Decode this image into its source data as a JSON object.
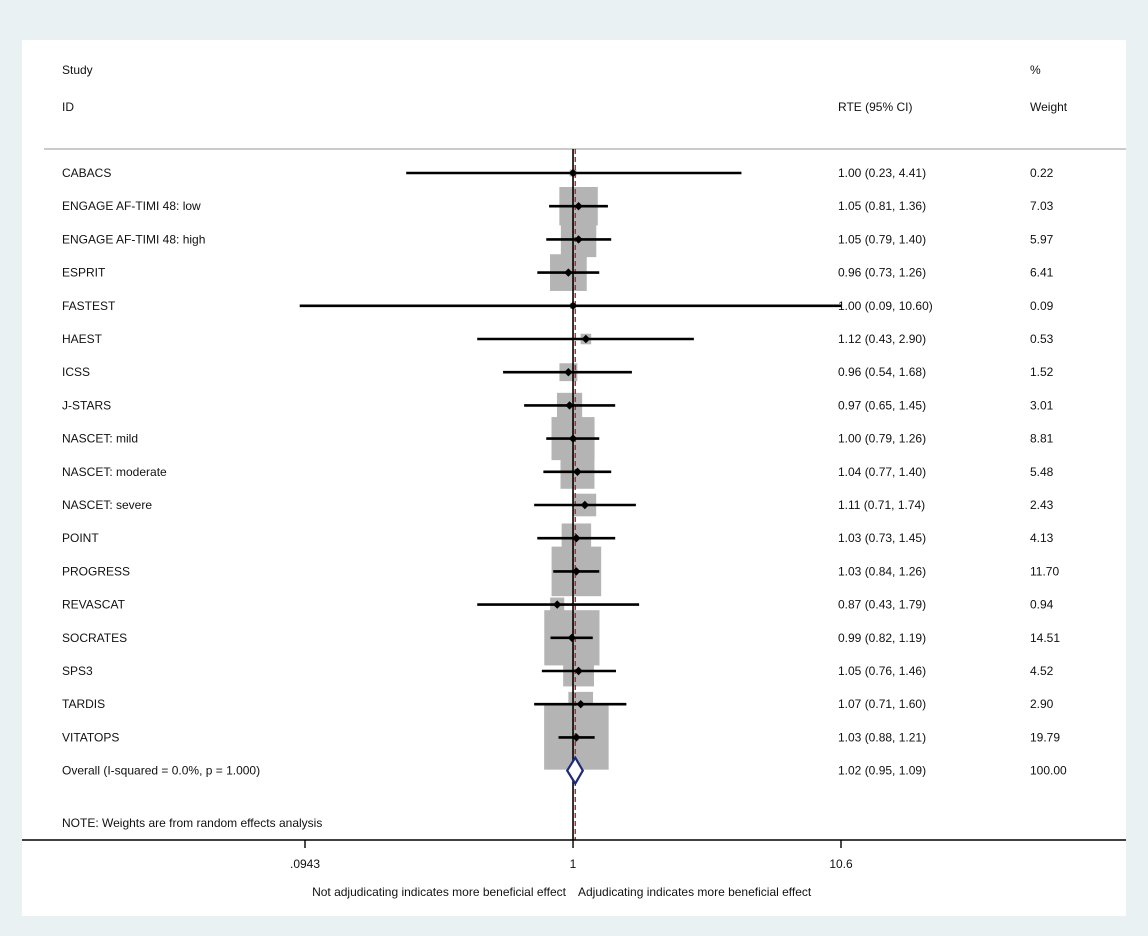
{
  "header": {
    "study_line1": "Study",
    "study_line2": "ID",
    "effect_label": "RTE (95% CI)",
    "weight_line1": "%",
    "weight_line2": "Weight"
  },
  "note": "NOTE: Weights are from random effects analysis",
  "footer": {
    "left_direction": "Not adjudicating indicates more beneficial effect",
    "right_direction": "Adjudicating indicates more beneficial effect"
  },
  "colors": {
    "background": "#eaf1f3",
    "panel": "#ffffff",
    "weight_box": "#b4b4b4",
    "point": "#000000",
    "overall_diamond": "#1f2a7a",
    "reference_line": "#a03232"
  },
  "chart_data": {
    "type": "forest",
    "x_scale": "log",
    "xlim": [
      0.0943,
      10.6
    ],
    "xticks": [
      0.0943,
      1,
      10.6
    ],
    "xtick_labels": [
      ".0943",
      "1",
      "10.6"
    ],
    "reference_value": 1,
    "overall_line_value": 1.02,
    "studies": [
      {
        "id": "CABACS",
        "est": 1.0,
        "lo": 0.23,
        "hi": 4.41,
        "ci_text": "1.00 (0.23, 4.41)",
        "weight": 0.22,
        "weight_text": "0.22"
      },
      {
        "id": "ENGAGE AF-TIMI 48: low",
        "est": 1.05,
        "lo": 0.81,
        "hi": 1.36,
        "ci_text": "1.05 (0.81, 1.36)",
        "weight": 7.03,
        "weight_text": "7.03"
      },
      {
        "id": "ENGAGE AF-TIMI 48: high",
        "est": 1.05,
        "lo": 0.79,
        "hi": 1.4,
        "ci_text": "1.05 (0.79, 1.40)",
        "weight": 5.97,
        "weight_text": "5.97"
      },
      {
        "id": "ESPRIT",
        "est": 0.96,
        "lo": 0.73,
        "hi": 1.26,
        "ci_text": "0.96 (0.73, 1.26)",
        "weight": 6.41,
        "weight_text": "6.41"
      },
      {
        "id": "FASTEST",
        "est": 1.0,
        "lo": 0.09,
        "hi": 10.6,
        "ci_text": "1.00 (0.09, 10.60)",
        "weight": 0.09,
        "weight_text": "0.09"
      },
      {
        "id": "HAEST",
        "est": 1.12,
        "lo": 0.43,
        "hi": 2.9,
        "ci_text": "1.12 (0.43, 2.90)",
        "weight": 0.53,
        "weight_text": "0.53"
      },
      {
        "id": "ICSS",
        "est": 0.96,
        "lo": 0.54,
        "hi": 1.68,
        "ci_text": "0.96 (0.54, 1.68)",
        "weight": 1.52,
        "weight_text": "1.52"
      },
      {
        "id": "J-STARS",
        "est": 0.97,
        "lo": 0.65,
        "hi": 1.45,
        "ci_text": "0.97 (0.65, 1.45)",
        "weight": 3.01,
        "weight_text": "3.01"
      },
      {
        "id": "NASCET: mild",
        "est": 1.0,
        "lo": 0.79,
        "hi": 1.26,
        "ci_text": "1.00 (0.79, 1.26)",
        "weight": 8.81,
        "weight_text": "8.81"
      },
      {
        "id": "NASCET: moderate",
        "est": 1.04,
        "lo": 0.77,
        "hi": 1.4,
        "ci_text": "1.04 (0.77, 1.40)",
        "weight": 5.48,
        "weight_text": "5.48"
      },
      {
        "id": "NASCET: severe",
        "est": 1.11,
        "lo": 0.71,
        "hi": 1.74,
        "ci_text": "1.11 (0.71, 1.74)",
        "weight": 2.43,
        "weight_text": "2.43"
      },
      {
        "id": "POINT",
        "est": 1.03,
        "lo": 0.73,
        "hi": 1.45,
        "ci_text": "1.03 (0.73, 1.45)",
        "weight": 4.13,
        "weight_text": "4.13"
      },
      {
        "id": "PROGRESS",
        "est": 1.03,
        "lo": 0.84,
        "hi": 1.26,
        "ci_text": "1.03 (0.84, 1.26)",
        "weight": 11.7,
        "weight_text": "11.70"
      },
      {
        "id": "REVASCAT",
        "est": 0.87,
        "lo": 0.43,
        "hi": 1.79,
        "ci_text": "0.87 (0.43, 1.79)",
        "weight": 0.94,
        "weight_text": "0.94"
      },
      {
        "id": "SOCRATES",
        "est": 0.99,
        "lo": 0.82,
        "hi": 1.19,
        "ci_text": "0.99 (0.82, 1.19)",
        "weight": 14.51,
        "weight_text": "14.51"
      },
      {
        "id": "SPS3",
        "est": 1.05,
        "lo": 0.76,
        "hi": 1.46,
        "ci_text": "1.05 (0.76, 1.46)",
        "weight": 4.52,
        "weight_text": "4.52"
      },
      {
        "id": "TARDIS",
        "est": 1.07,
        "lo": 0.71,
        "hi": 1.6,
        "ci_text": "1.07 (0.71, 1.60)",
        "weight": 2.9,
        "weight_text": "2.90"
      },
      {
        "id": "VITATOPS",
        "est": 1.03,
        "lo": 0.88,
        "hi": 1.21,
        "ci_text": "1.03 (0.88, 1.21)",
        "weight": 19.79,
        "weight_text": "19.79"
      }
    ],
    "overall": {
      "label": "Overall  (I-squared = 0.0%, p = 1.000)",
      "est": 1.02,
      "lo": 0.95,
      "hi": 1.09,
      "ci_text": "1.02 (0.95, 1.09)",
      "weight_text": "100.00"
    }
  }
}
